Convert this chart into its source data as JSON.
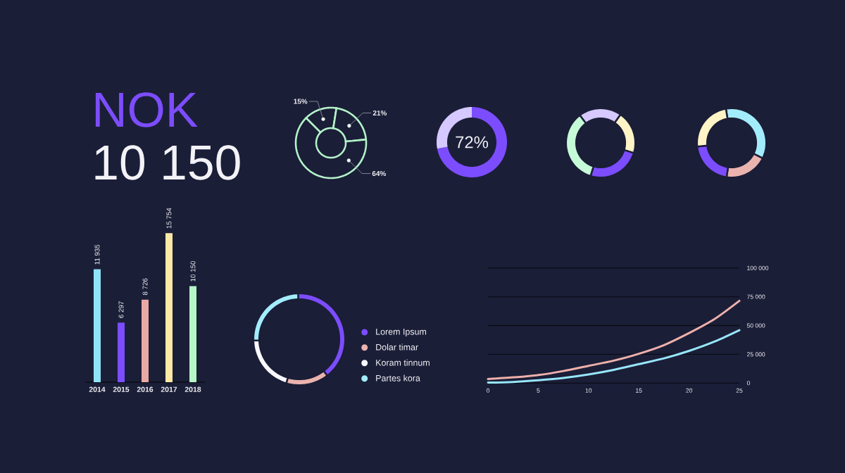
{
  "chart_data": [
    {
      "type": "other",
      "title": "NOK",
      "subtitle": "10 150"
    },
    {
      "type": "donut",
      "categories": [
        null,
        null,
        null
      ],
      "values": [
        15,
        21,
        64
      ],
      "colors": [
        "#b3f3c9",
        "#b3f3c9",
        "#b3f3c9"
      ],
      "value_labels": [
        "15%",
        "21%",
        "64%"
      ]
    },
    {
      "type": "donut",
      "categories": [
        null,
        null
      ],
      "values": [
        72,
        28
      ],
      "colors": [
        "#7c4dff",
        "#d5c9ff"
      ],
      "value_labels": [
        "72%",
        null
      ]
    },
    {
      "type": "donut",
      "categories": [
        null,
        null,
        null,
        null
      ],
      "values": [
        20,
        20,
        25,
        35
      ],
      "colors": [
        "#d5c9ff",
        "#fff4c6",
        "#7c4dff",
        "#c6fbd8"
      ]
    },
    {
      "type": "donut",
      "categories": [
        null,
        null,
        null,
        null
      ],
      "values": [
        35,
        20,
        21,
        24
      ],
      "colors": [
        "#a3ecfc",
        "#ebb3ae",
        "#7c4dff",
        "#fff4c6"
      ]
    },
    {
      "type": "bar",
      "categories": [
        "2014",
        "2015",
        "2016",
        "2017",
        "2018"
      ],
      "values": [
        11935,
        6297,
        8726,
        15754,
        10150
      ],
      "colors": [
        "#8fe3f6",
        "#7c4dff",
        "#e9a9a5",
        "#fde9a6",
        "#b5f5c6"
      ],
      "value_labels": [
        "11 935",
        "6 297",
        "8 726",
        "15 754",
        "10 150"
      ]
    },
    {
      "type": "donut",
      "categories": [
        "Lorem Ipsum",
        "Dolar timar",
        "Koram tinnum",
        "Partes kora"
      ],
      "values": [
        40,
        15,
        20,
        25
      ],
      "colors": [
        "#7c4dff",
        "#ebb3ae",
        "#f8f8ff",
        "#a3ecfc"
      ],
      "legend": "right"
    },
    {
      "type": "line",
      "x": [
        0,
        2.5,
        5,
        7.5,
        10,
        12.5,
        15,
        17.5,
        20,
        22.5,
        25
      ],
      "series": [
        {
          "color": "#eeb0ab",
          "values": [
            3500,
            5000,
            7000,
            10500,
            15000,
            19500,
            25500,
            33000,
            43500,
            55500,
            71500
          ]
        },
        {
          "color": "#97e6fb",
          "values": [
            500,
            1000,
            2500,
            4500,
            7500,
            11500,
            16500,
            21500,
            28000,
            36000,
            46000
          ]
        }
      ],
      "xlim": [
        0,
        25
      ],
      "ylim": [
        0,
        100000
      ],
      "xticks": [
        0,
        5,
        10,
        15,
        20,
        25
      ],
      "yticks": [
        0,
        {
          "value": 25000,
          "label": "25 000"
        },
        {
          "value": 50000,
          "label": "50 000"
        },
        {
          "value": 75000,
          "label": "75 000"
        },
        {
          "value": 100000,
          "label": "100 000"
        }
      ],
      "grid": "y"
    }
  ]
}
